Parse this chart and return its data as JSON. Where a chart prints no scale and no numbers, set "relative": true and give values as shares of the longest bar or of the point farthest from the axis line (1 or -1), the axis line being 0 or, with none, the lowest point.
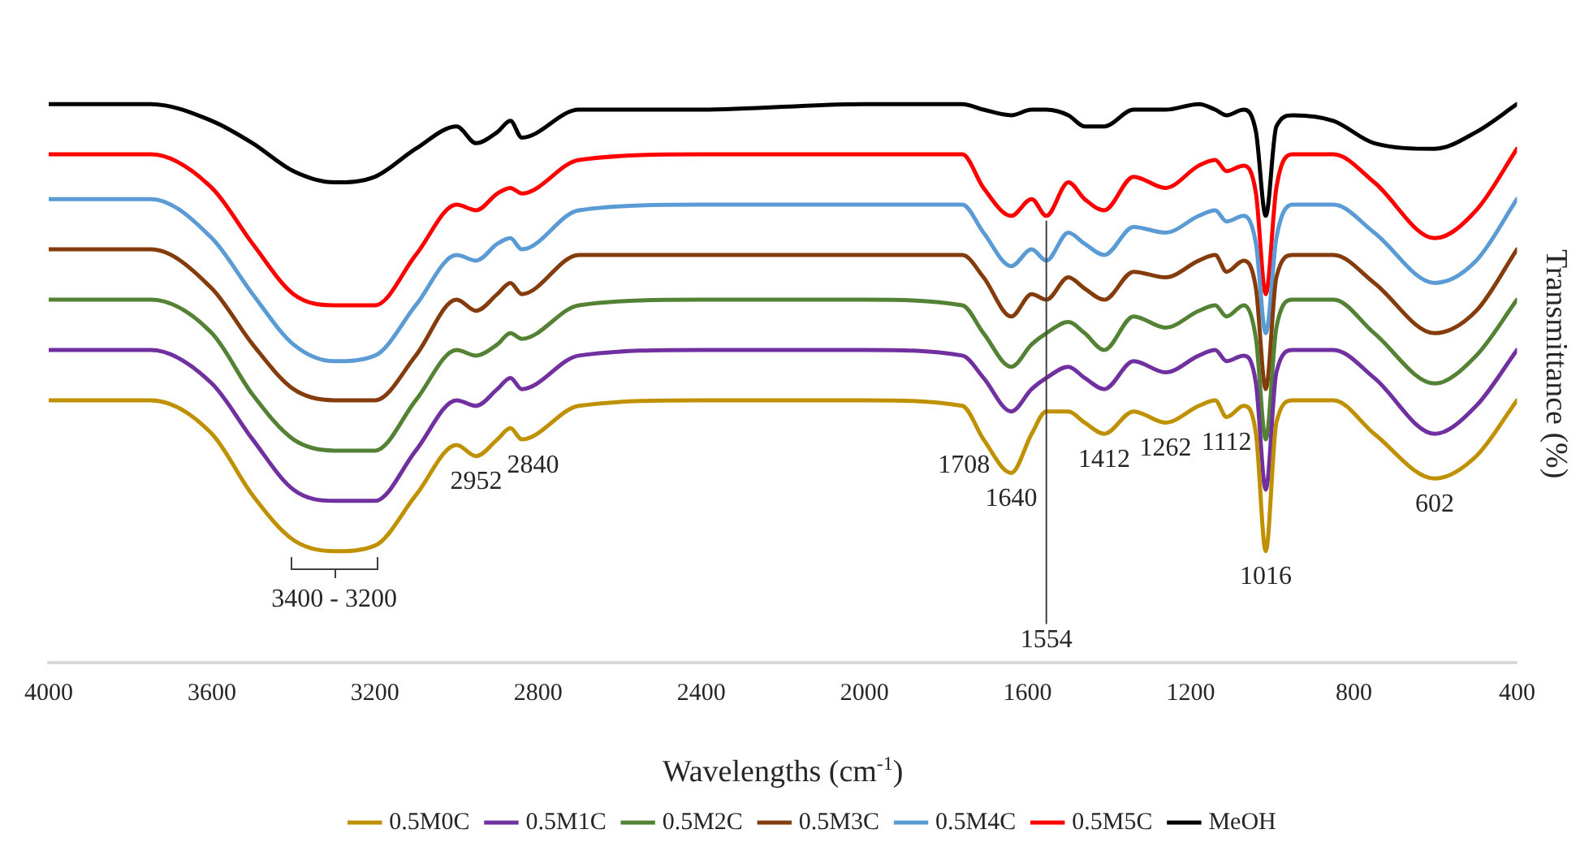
{
  "chart_data": {
    "type": "line",
    "relative": true,
    "xlabel": "Wavelengths (cm$^{-1}$)",
    "ylabel": "Transmittance (%)",
    "x": [
      4000,
      3750,
      3600,
      3500,
      3400,
      3300,
      3200,
      3100,
      3000,
      2952,
      2900,
      2868,
      2840,
      2700,
      2400,
      2000,
      1760,
      1708,
      1640,
      1590,
      1554,
      1500,
      1460,
      1412,
      1340,
      1262,
      1180,
      1140,
      1112,
      1070,
      1040,
      1016,
      990,
      950,
      850,
      750,
      602,
      500,
      400
    ],
    "xlim": [
      4000,
      400
    ],
    "xticks": [
      4000,
      3600,
      3200,
      2800,
      2400,
      2000,
      1600,
      1200,
      800,
      400
    ],
    "grid": false,
    "legend": "bottom",
    "marker": "none",
    "line_style": "solid",
    "tick_labels": "x",
    "series": [
      {
        "name": "0.5M0C",
        "color": "#bf9000",
        "values": [
          0.47,
          0.47,
          0.41,
          0.3,
          0.22,
          0.2,
          0.21,
          0.3,
          0.39,
          0.37,
          0.4,
          0.42,
          0.4,
          0.46,
          0.47,
          0.47,
          0.46,
          0.4,
          0.34,
          0.41,
          0.45,
          0.45,
          0.43,
          0.41,
          0.45,
          0.43,
          0.46,
          0.47,
          0.44,
          0.46,
          0.41,
          0.2,
          0.43,
          0.47,
          0.47,
          0.41,
          0.33,
          0.37,
          0.47
        ]
      },
      {
        "name": "0.5M1C",
        "color": "#7030a0",
        "values": [
          0.56,
          0.56,
          0.5,
          0.4,
          0.31,
          0.29,
          0.29,
          0.38,
          0.47,
          0.46,
          0.49,
          0.51,
          0.49,
          0.55,
          0.56,
          0.56,
          0.55,
          0.51,
          0.45,
          0.49,
          0.51,
          0.53,
          0.51,
          0.49,
          0.54,
          0.52,
          0.55,
          0.56,
          0.54,
          0.55,
          0.5,
          0.31,
          0.52,
          0.56,
          0.56,
          0.51,
          0.41,
          0.46,
          0.56
        ]
      },
      {
        "name": "0.5M2C",
        "color": "#548235",
        "values": [
          0.65,
          0.65,
          0.59,
          0.48,
          0.4,
          0.38,
          0.38,
          0.47,
          0.56,
          0.55,
          0.57,
          0.59,
          0.58,
          0.64,
          0.65,
          0.65,
          0.64,
          0.59,
          0.53,
          0.57,
          0.59,
          0.61,
          0.59,
          0.56,
          0.62,
          0.6,
          0.63,
          0.64,
          0.62,
          0.64,
          0.58,
          0.4,
          0.6,
          0.65,
          0.65,
          0.59,
          0.5,
          0.55,
          0.65
        ]
      },
      {
        "name": "0.5M3C",
        "color": "#843c0c",
        "values": [
          0.74,
          0.74,
          0.67,
          0.57,
          0.49,
          0.47,
          0.47,
          0.55,
          0.65,
          0.63,
          0.66,
          0.68,
          0.66,
          0.73,
          0.73,
          0.73,
          0.73,
          0.69,
          0.62,
          0.66,
          0.65,
          0.69,
          0.67,
          0.65,
          0.7,
          0.69,
          0.72,
          0.73,
          0.7,
          0.72,
          0.67,
          0.49,
          0.69,
          0.73,
          0.73,
          0.68,
          0.59,
          0.63,
          0.74
        ]
      },
      {
        "name": "0.5M4C",
        "color": "#5b9bd5",
        "values": [
          0.83,
          0.83,
          0.76,
          0.66,
          0.57,
          0.54,
          0.55,
          0.64,
          0.73,
          0.72,
          0.75,
          0.76,
          0.74,
          0.81,
          0.82,
          0.82,
          0.82,
          0.77,
          0.71,
          0.74,
          0.72,
          0.77,
          0.75,
          0.73,
          0.78,
          0.77,
          0.8,
          0.81,
          0.79,
          0.8,
          0.75,
          0.59,
          0.76,
          0.82,
          0.82,
          0.77,
          0.68,
          0.72,
          0.83
        ]
      },
      {
        "name": "0.5M5C",
        "color": "#ff0000",
        "values": [
          0.91,
          0.91,
          0.85,
          0.75,
          0.66,
          0.64,
          0.64,
          0.73,
          0.82,
          0.81,
          0.84,
          0.85,
          0.84,
          0.9,
          0.91,
          0.91,
          0.91,
          0.85,
          0.8,
          0.83,
          0.8,
          0.86,
          0.83,
          0.81,
          0.87,
          0.85,
          0.89,
          0.9,
          0.88,
          0.89,
          0.84,
          0.66,
          0.85,
          0.91,
          0.91,
          0.86,
          0.76,
          0.81,
          0.92
        ]
      },
      {
        "name": "MeOH",
        "color": "#000000",
        "values": [
          1.0,
          1.0,
          0.97,
          0.93,
          0.88,
          0.86,
          0.87,
          0.92,
          0.96,
          0.93,
          0.95,
          0.97,
          0.94,
          0.99,
          0.99,
          1.0,
          1.0,
          0.99,
          0.98,
          0.99,
          0.99,
          0.98,
          0.96,
          0.96,
          0.99,
          0.99,
          1.0,
          0.99,
          0.98,
          0.99,
          0.95,
          0.8,
          0.96,
          0.98,
          0.97,
          0.93,
          0.92,
          0.95,
          1.0
        ]
      }
    ],
    "annotations": [
      {
        "text": "3400 - 3200",
        "x": 3300,
        "y": 0.2
      },
      {
        "text": "2952",
        "x": 2952,
        "y": 0.37
      },
      {
        "text": "2840",
        "x": 2840,
        "y": 0.4
      },
      {
        "text": "1708",
        "x": 1708,
        "y": 0.4
      },
      {
        "text": "1640",
        "x": 1640,
        "y": 0.34
      },
      {
        "text": "1554",
        "x": 1554,
        "y": 0.8
      },
      {
        "text": "1412",
        "x": 1412,
        "y": 0.41
      },
      {
        "text": "1262",
        "x": 1262,
        "y": 0.43
      },
      {
        "text": "1112",
        "x": 1112,
        "y": 0.44
      },
      {
        "text": "1016",
        "x": 1016,
        "y": 0.2
      },
      {
        "text": "602",
        "x": 602,
        "y": 0.33
      }
    ]
  }
}
